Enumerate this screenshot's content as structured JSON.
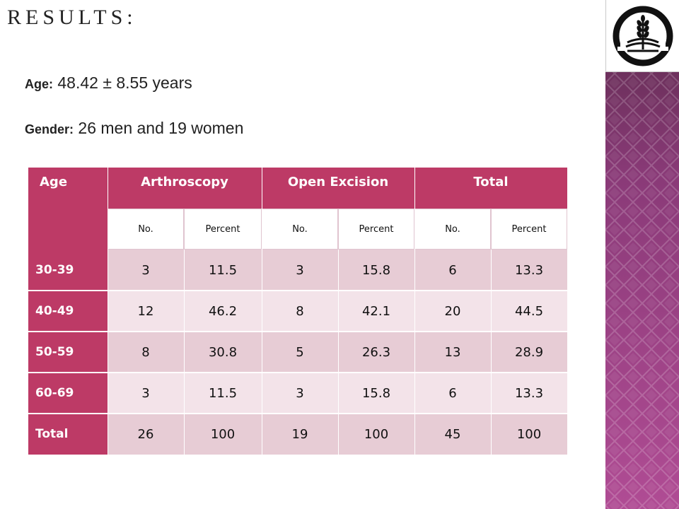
{
  "slide": {
    "title": "RESULTS:",
    "age_label": "Age:",
    "age_value": "48.42 ± 8.55 years",
    "gender_label": "Gender:",
    "gender_value": "26 men and 19 women"
  },
  "colors": {
    "header": "#bd3a66",
    "row_band_dark": "#e7ccd5",
    "row_band_light": "#f3e3e9",
    "side_band": "#9b3d82"
  },
  "logo": {
    "icon": "wheat-emblem-logo"
  },
  "table": {
    "header": {
      "age": "Age",
      "groups": [
        "Arthroscopy",
        "Open Excision",
        "Total"
      ],
      "sub": [
        "No.",
        "Percent",
        "No.",
        "Percent",
        "No.",
        "Percent"
      ]
    },
    "rows": [
      {
        "label": "30-39",
        "cells": [
          "3",
          "11.5",
          "3",
          "15.8",
          "6",
          "13.3"
        ]
      },
      {
        "label": "40-49",
        "cells": [
          "12",
          "46.2",
          "8",
          "42.1",
          "20",
          "44.5"
        ]
      },
      {
        "label": "50-59",
        "cells": [
          "8",
          "30.8",
          "5",
          "26.3",
          "13",
          "28.9"
        ]
      },
      {
        "label": "60-69",
        "cells": [
          "3",
          "11.5",
          "3",
          "15.8",
          "6",
          "13.3"
        ]
      },
      {
        "label": "Total",
        "cells": [
          "26",
          "100",
          "19",
          "100",
          "45",
          "100"
        ]
      }
    ]
  }
}
